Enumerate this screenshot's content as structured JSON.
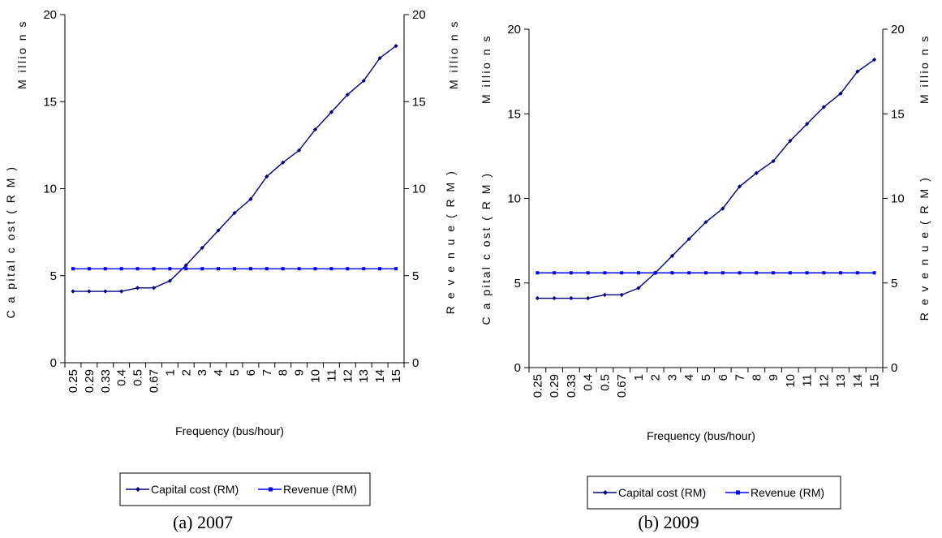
{
  "chart_data": [
    {
      "type": "line",
      "caption": "(a) 2007",
      "categories": [
        "0.25",
        "0.29",
        "0.33",
        "0.4",
        "0.5",
        "0.67",
        "1",
        "2",
        "3",
        "4",
        "5",
        "6",
        "7",
        "8",
        "9",
        "10",
        "11",
        "12",
        "13",
        "14",
        "15"
      ],
      "xlabel": "Frequency (bus/hour)",
      "ylabel_left": "C a pital c ost ( R M )",
      "ylabel_right": "R e v e n u e  ( R M )",
      "units_left": "M illio n s",
      "units_right": "M illio n s",
      "ylim_left": [
        0,
        20
      ],
      "ylim_right": [
        0,
        20
      ],
      "yticks_left": [
        "0",
        "5",
        "10",
        "15",
        "20"
      ],
      "yticks_right": [
        "0",
        "5",
        "10",
        "15",
        "20"
      ],
      "legend_position": "bottom",
      "series": [
        {
          "name": "Capital cost (RM)",
          "axis": "left",
          "color": "#000080",
          "values": [
            4.1,
            4.1,
            4.1,
            4.1,
            4.3,
            4.3,
            4.7,
            5.6,
            6.6,
            7.6,
            8.6,
            9.4,
            10.7,
            11.5,
            12.2,
            13.4,
            14.4,
            15.4,
            16.2,
            17.5,
            18.2
          ]
        },
        {
          "name": "Revenue (RM)",
          "axis": "right",
          "color": "#0000ff",
          "values": [
            5.4,
            5.4,
            5.4,
            5.4,
            5.4,
            5.4,
            5.4,
            5.4,
            5.4,
            5.4,
            5.4,
            5.4,
            5.4,
            5.4,
            5.4,
            5.4,
            5.4,
            5.4,
            5.4,
            5.4,
            5.4
          ]
        }
      ]
    },
    {
      "type": "line",
      "caption": "(b) 2009",
      "categories": [
        "0.25",
        "0.29",
        "0.33",
        "0.4",
        "0.5",
        "0.67",
        "1",
        "2",
        "3",
        "4",
        "5",
        "6",
        "7",
        "8",
        "9",
        "10",
        "11",
        "12",
        "13",
        "14",
        "15"
      ],
      "xlabel": "Frequency (bus/hour)",
      "ylabel_left": "C a pital c ost ( R M )",
      "ylabel_right": "R e v e n u e  ( R M )",
      "units_left": "M illio n s",
      "units_right": "M illio n s",
      "ylim_left": [
        0,
        20
      ],
      "ylim_right": [
        0,
        20
      ],
      "yticks_left": [
        "0",
        "5",
        "10",
        "15",
        "20"
      ],
      "yticks_right": [
        "0",
        "5",
        "10",
        "15",
        "20"
      ],
      "legend_position": "bottom",
      "series": [
        {
          "name": "Capital cost (RM)",
          "axis": "left",
          "color": "#000080",
          "values": [
            4.1,
            4.1,
            4.1,
            4.1,
            4.3,
            4.3,
            4.7,
            5.6,
            6.6,
            7.6,
            8.6,
            9.4,
            10.7,
            11.5,
            12.2,
            13.4,
            14.4,
            15.4,
            16.2,
            17.5,
            18.2
          ]
        },
        {
          "name": "Revenue (RM)",
          "axis": "right",
          "color": "#0000ff",
          "values": [
            5.6,
            5.6,
            5.6,
            5.6,
            5.6,
            5.6,
            5.6,
            5.6,
            5.6,
            5.6,
            5.6,
            5.6,
            5.6,
            5.6,
            5.6,
            5.6,
            5.6,
            5.6,
            5.6,
            5.6,
            5.6
          ]
        }
      ]
    }
  ]
}
